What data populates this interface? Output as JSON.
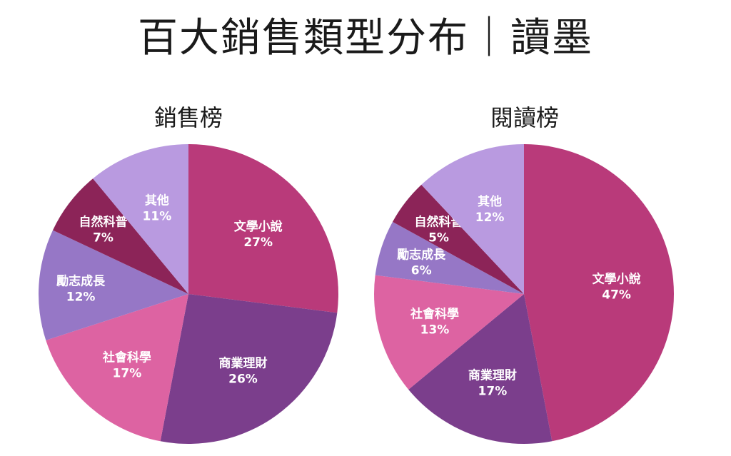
{
  "title": "百大銷售類型分布｜讀墨",
  "colors": {
    "文學小說": "#B93A7A",
    "商業理財": "#7B3E8C",
    "社會科學": "#DD63A2",
    "勵志成長": "#9677C6",
    "自然科普": "#8C2458",
    "其他": "#B99AE0"
  },
  "chart_data": [
    {
      "type": "pie",
      "title": "銷售榜",
      "slices": [
        {
          "label": "文學小說",
          "value": 27,
          "value_label": "27%"
        },
        {
          "label": "商業理財",
          "value": 26,
          "value_label": "26%"
        },
        {
          "label": "社會科學",
          "value": 17,
          "value_label": "17%"
        },
        {
          "label": "勵志成長",
          "value": 12,
          "value_label": "12%"
        },
        {
          "label": "自然科普",
          "value": 7,
          "value_label": "7%"
        },
        {
          "label": "其他",
          "value": 11,
          "value_label": "11%"
        }
      ]
    },
    {
      "type": "pie",
      "title": "閱讀榜",
      "slices": [
        {
          "label": "文學小說",
          "value": 47,
          "value_label": "47%"
        },
        {
          "label": "商業理財",
          "value": 17,
          "value_label": "17%"
        },
        {
          "label": "社會科學",
          "value": 13,
          "value_label": "13%"
        },
        {
          "label": "勵志成長",
          "value": 6,
          "value_label": "6%"
        },
        {
          "label": "自然科普",
          "value": 5,
          "value_label": "5%"
        },
        {
          "label": "其他",
          "value": 12,
          "value_label": "12%"
        }
      ]
    }
  ]
}
